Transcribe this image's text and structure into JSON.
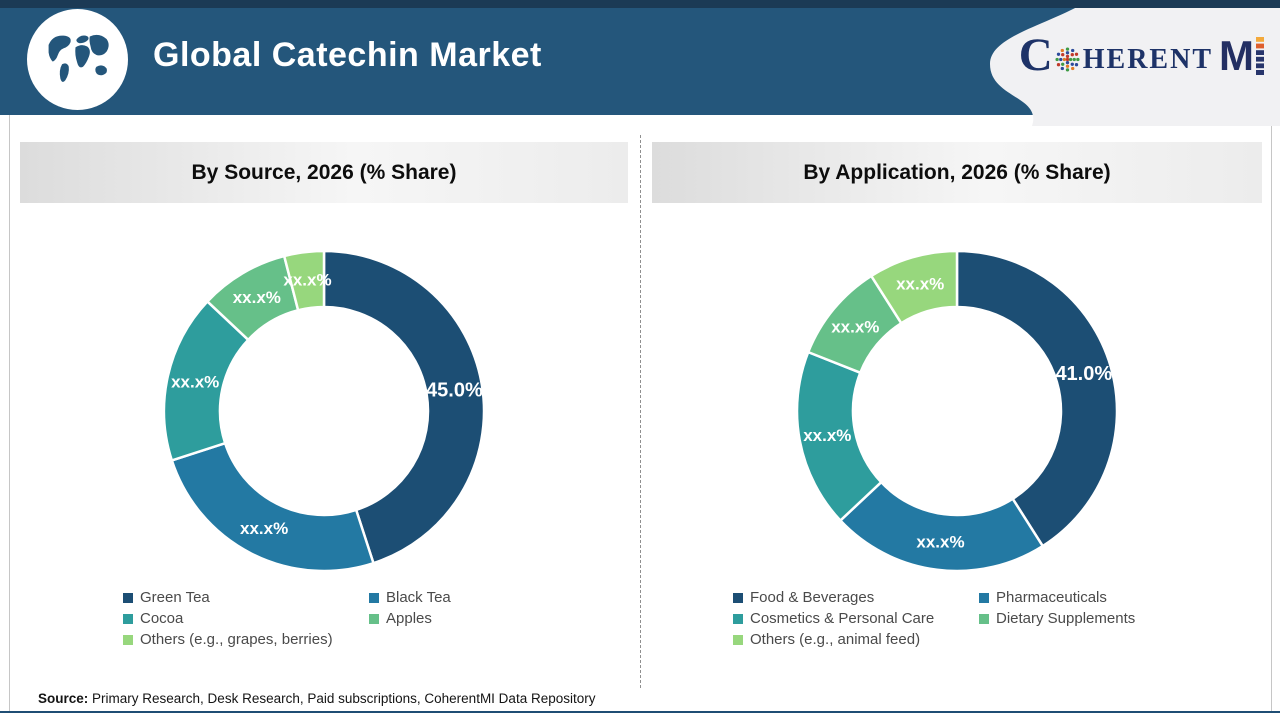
{
  "header": {
    "title": "Global Catechin Market",
    "logo": {
      "name": "CoherentMI",
      "c": "C",
      "rest": "HERENT",
      "m": "M"
    }
  },
  "chart_data": [
    {
      "type": "pie",
      "subtype": "donut",
      "title": "By Source, 2026 (% Share)",
      "categories": [
        "Green Tea",
        "Black Tea",
        "Cocoa",
        "Apples",
        "Others (e.g., grapes, berries)"
      ],
      "values": [
        45.0,
        25.0,
        17.0,
        9.0,
        4.0
      ],
      "value_labels": [
        "45.0%",
        "xx.x%",
        "xx.x%",
        "xx.x%",
        "xx.x%"
      ],
      "colors": [
        "#1C4E74",
        "#2379A3",
        "#2E9D9D",
        "#66C089",
        "#97D77D"
      ],
      "start_angle_deg": 0,
      "direction": "clockwise",
      "legend_position": "bottom"
    },
    {
      "type": "pie",
      "subtype": "donut",
      "title": "By Application, 2026 (% Share)",
      "categories": [
        "Food & Beverages",
        "Pharmaceuticals",
        "Cosmetics & Personal Care",
        "Dietary Supplements",
        "Others (e.g., animal feed)"
      ],
      "values": [
        41.0,
        22.0,
        18.0,
        10.0,
        9.0
      ],
      "value_labels": [
        "41.0%",
        "xx.x%",
        "xx.x%",
        "xx.x%",
        "xx.x%"
      ],
      "colors": [
        "#1C4E74",
        "#2379A3",
        "#2E9D9D",
        "#66C089",
        "#97D77D"
      ],
      "start_angle_deg": 0,
      "direction": "clockwise",
      "legend_position": "bottom"
    }
  ],
  "source": {
    "label": "Source:",
    "text": "Primary Research, Desk Research, Paid subscriptions, CoherentMI Data Repository"
  },
  "theme": {
    "header_bg": "#24567B",
    "header_top_strip": "#1B3A55",
    "logo_panel_bg": "#F1F1F3",
    "logo_navy": "#1E3368",
    "logo_accent_orange": "#F3A93B",
    "logo_accent_red": "#DE5F2D",
    "bottom_rule": "#1F4E74",
    "legend_text": "#4A4A4A"
  }
}
